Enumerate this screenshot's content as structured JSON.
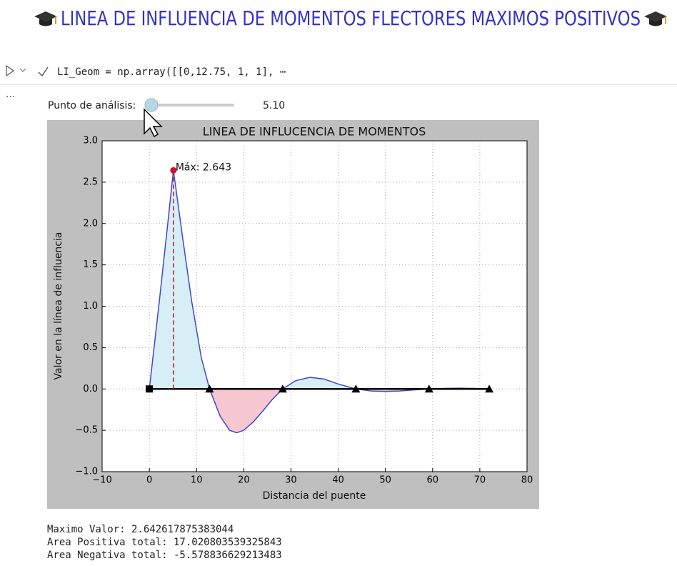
{
  "header": {
    "title": "LINEA DE INFLUENCIA DE MOMENTOS FLECTORES MAXIMOS POSITIVOS"
  },
  "cell": {
    "code": "LI_Geom = np.array([[0,12.75, 1, 1], ⋯",
    "more": "···"
  },
  "widget": {
    "label": "Punto de análisis:",
    "value": "5.10"
  },
  "chart_data": {
    "type": "line",
    "title": "LINEA DE INFLUCENCIA DE MOMENTOS",
    "x_label": "Distancia del puente",
    "y_label": "Valor en la línea de influencia",
    "x": [
      0,
      2,
      4,
      5.1,
      7,
      9,
      11,
      12.75,
      15,
      17,
      18.5,
      20,
      22,
      24,
      26,
      28.25,
      31,
      34,
      37,
      40,
      43.75,
      47,
      50,
      53,
      56,
      59.25,
      63,
      66,
      69,
      72
    ],
    "series": [
      {
        "color": "#4646c8",
        "values": [
          0,
          1.0,
          2.05,
          2.643,
          1.85,
          1.05,
          0.38,
          0,
          -0.33,
          -0.5,
          -0.53,
          -0.5,
          -0.4,
          -0.27,
          -0.13,
          0,
          0.1,
          0.14,
          0.12,
          0.06,
          0,
          -0.025,
          -0.03,
          -0.025,
          -0.012,
          0,
          0.008,
          0.01,
          0.007,
          0
        ]
      }
    ],
    "positive_fill": "#d6eef5",
    "negative_fill": "#f6c6d1",
    "supports": {
      "x": [
        0,
        12.75,
        28.25,
        43.75,
        59.25,
        72
      ],
      "values": [
        0,
        0,
        0,
        0,
        0,
        0
      ]
    },
    "max_point": {
      "x": 5.1,
      "y": 2.643,
      "label": "Máx: 2.643",
      "color": "#d0102a"
    },
    "xlim": [
      -10,
      80
    ],
    "xticks": [
      {
        "value": -10,
        "label": "−10"
      },
      0,
      10,
      20,
      30,
      40,
      50,
      60,
      70,
      80
    ],
    "ylim": [
      -1,
      3
    ],
    "yticks": [
      {
        "value": -1,
        "label": "−1.0"
      },
      {
        "value": -0.5,
        "label": "−0.5"
      },
      {
        "value": 0,
        "label": "0.0"
      },
      {
        "value": 0.5,
        "label": "0.5"
      },
      {
        "value": 1,
        "label": "1.0"
      },
      {
        "value": 1.5,
        "label": "1.5"
      },
      {
        "value": 2,
        "label": "2.0"
      },
      {
        "value": 2.5,
        "label": "2.5"
      },
      {
        "value": 3,
        "label": "3.0"
      }
    ],
    "grid": true
  },
  "output": {
    "lines": [
      "Maximo Valor: 2.642617875383044",
      "Area Positiva total: 17.020803539325843",
      "Area Negativa total: -5.578836629213483"
    ]
  }
}
